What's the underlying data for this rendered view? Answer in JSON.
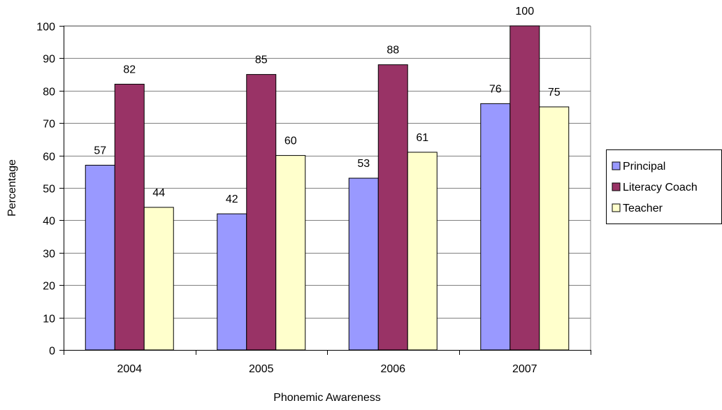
{
  "chart_data": {
    "type": "bar",
    "title": "",
    "xlabel": "Phonemic Awareness",
    "ylabel": "Percentage",
    "categories": [
      "2004",
      "2005",
      "2006",
      "2007"
    ],
    "series": [
      {
        "name": "Principal",
        "values": [
          57,
          42,
          53,
          76
        ],
        "color": "#9999FF"
      },
      {
        "name": "Literacy Coach",
        "values": [
          82,
          85,
          88,
          100
        ],
        "color": "#993366"
      },
      {
        "name": "Teacher",
        "values": [
          44,
          60,
          61,
          75
        ],
        "color": "#FFFFCC"
      }
    ],
    "ylim": [
      0,
      100
    ],
    "yticks": [
      0,
      10,
      20,
      30,
      40,
      50,
      60,
      70,
      80,
      90,
      100
    ],
    "grid": true,
    "legend_position": "right",
    "data_labels": true
  }
}
